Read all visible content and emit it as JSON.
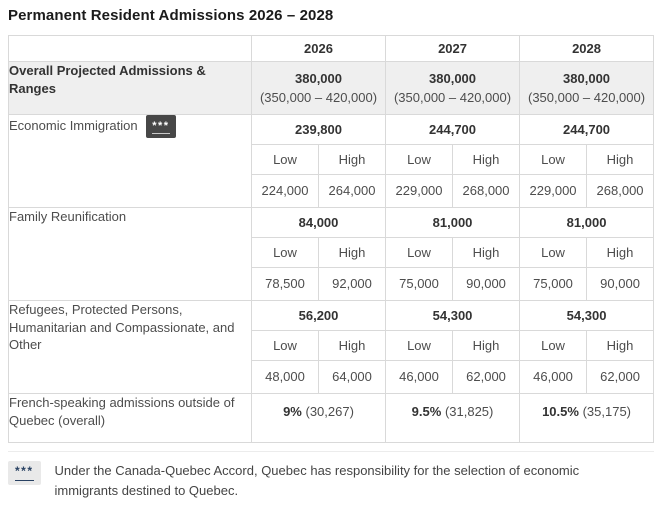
{
  "title": "Permanent Resident Admissions 2026 – 2028",
  "table": {
    "year_headers": [
      "2026",
      "2027",
      "2028"
    ],
    "low_label": "Low",
    "high_label": "High",
    "overall": {
      "label": "Overall Projected Admissions & Ranges",
      "values": [
        {
          "main": "380,000",
          "range": "(350,000 – 420,000)"
        },
        {
          "main": "380,000",
          "range": "(350,000 – 420,000)"
        },
        {
          "main": "380,000",
          "range": "(350,000 – 420,000)"
        }
      ]
    },
    "categories": [
      {
        "label": "Economic Immigration",
        "badge": "***",
        "values": [
          "239,800",
          "244,700",
          "244,700"
        ],
        "low": [
          "224,000",
          "229,000",
          "229,000"
        ],
        "high": [
          "264,000",
          "268,000",
          "268,000"
        ]
      },
      {
        "label": "Family Reunification",
        "values": [
          "84,000",
          "81,000",
          "81,000"
        ],
        "low": [
          "78,500",
          "75,000",
          "75,000"
        ],
        "high": [
          "92,000",
          "90,000",
          "90,000"
        ]
      },
      {
        "label": "Refugees, Protected Persons, Humanitarian and Compassionate, and Other",
        "values": [
          "56,200",
          "54,300",
          "54,300"
        ],
        "low": [
          "48,000",
          "46,000",
          "46,000"
        ],
        "high": [
          "64,000",
          "62,000",
          "62,000"
        ]
      }
    ],
    "french_row": {
      "label": "French-speaking admissions outside of Quebec (overall)",
      "values": [
        {
          "percent": "9%",
          "count": "(30,267)"
        },
        {
          "percent": "9.5%",
          "count": "(31,825)"
        },
        {
          "percent": "10.5%",
          "count": "(35,175)"
        }
      ]
    }
  },
  "footnote": {
    "badge": "***",
    "text": "Under the Canada-Quebec Accord, Quebec has responsibility for the selection of economic immigrants destined to Quebec."
  },
  "colors": {
    "overall_row_bg": "#efefef",
    "table_border": "#d9d9d9",
    "dark_badge_bg": "#474747",
    "dark_badge_text": "#ffffff",
    "footnote_badge_bg": "#e9e9e9",
    "footnote_badge_text": "#284162"
  }
}
